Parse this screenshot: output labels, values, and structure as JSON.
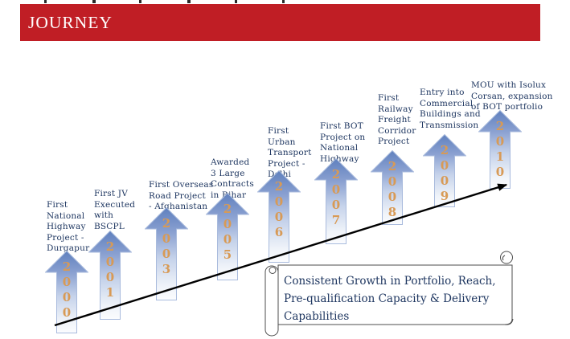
{
  "slide": {
    "title": "JOURNEY"
  },
  "timeline": {
    "milestones": [
      {
        "year": "2000",
        "label": "First\nNational\nHighway\nProject -\nDurgapur"
      },
      {
        "year": "2001",
        "label": "First JV\nExecuted\nwith\nBSCPL"
      },
      {
        "year": "2003",
        "label": "First Overseas\nRoad Project\n- Afghanistan"
      },
      {
        "year": "2005",
        "label": "Awarded\n3 Large\nContracts\nin Bihar"
      },
      {
        "year": "2006",
        "label": "First\nUrban\nTransport\nProject -\nDelhi"
      },
      {
        "year": "2007",
        "label": "First BOT\nProject on\nNational\nHighway"
      },
      {
        "year": "2008",
        "label": "First\nRailway\nFreight\nCorridor\nProject"
      },
      {
        "year": "2009",
        "label": "Entry into\nCommercial\nBuildings and\nTransmission"
      },
      {
        "year": "2010",
        "label": "MOU with Isolux\nCorsan, expansion\nof BOT portfolio"
      }
    ]
  },
  "banner": {
    "text": "Consistent Growth in Portfolio, Reach,\nPre-qualification Capacity & Delivery\nCapabilities"
  },
  "colors": {
    "header_red": "#c01e25",
    "navy_text": "#1e3660",
    "year_orange": "#d89a55",
    "arrow_outline": "#a9bbdd",
    "arrow_gradient": [
      "#5f80be",
      "#8ba1d1",
      "#c5d2ea",
      "#eff3f9",
      "#fbfcfe"
    ],
    "trend_line": "#000000",
    "scroll_stroke": "#4d4d4d"
  }
}
